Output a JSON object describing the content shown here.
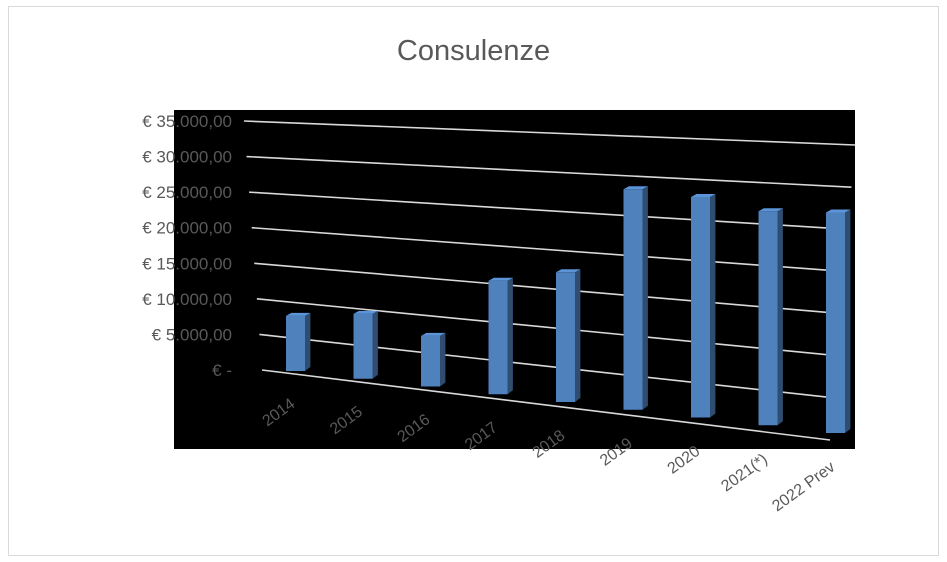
{
  "chart_data": {
    "type": "bar",
    "title": "Consulenze",
    "xlabel": "",
    "ylabel": "",
    "categories": [
      "2014",
      "2015",
      "2016",
      "2017",
      "2018",
      "2019",
      "2020",
      "2021(*)",
      "2022 Prev"
    ],
    "values": [
      8500,
      10000,
      7800,
      17500,
      20000,
      34000,
      34000,
      33000,
      34000
    ],
    "ylim": [
      0,
      35000
    ],
    "yticks": [
      0,
      5000,
      10000,
      15000,
      20000,
      25000,
      30000,
      35000
    ],
    "ytick_labels": [
      "€ -",
      "€ 5.000,00",
      "€ 10.000,00",
      "€ 15.000,00",
      "€ 20.000,00",
      "€ 25.000,00",
      "€ 30.000,00",
      "€ 35.000,00"
    ],
    "grid": true,
    "bar_color": "#4f81bd",
    "plot_background": "#000000",
    "gridline_color": "#d9d9d9",
    "text_color": "#595959"
  }
}
